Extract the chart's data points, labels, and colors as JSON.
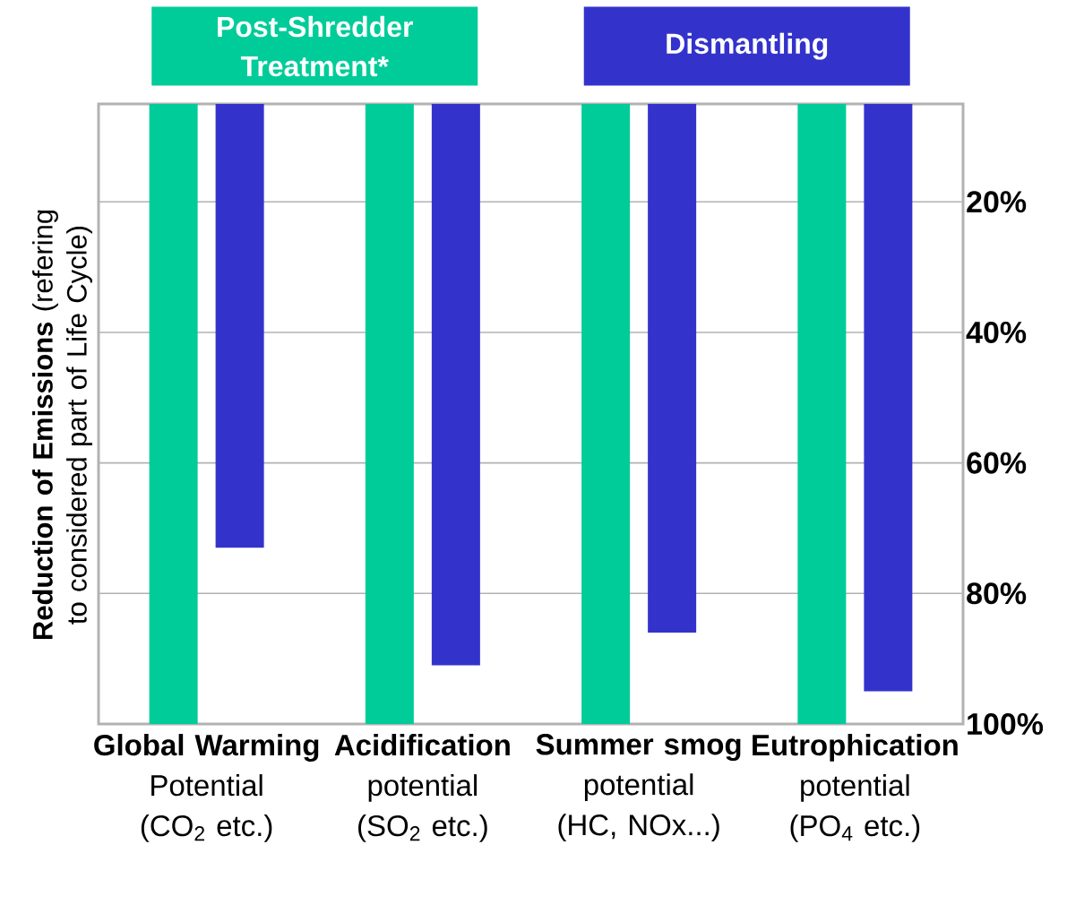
{
  "chart_data": {
    "type": "bar",
    "ylabel": "**Reduction of Emissions** (refering to considered part of Life Cycle)",
    "categories": [
      "**Global Warming** Potential (CO$_{2}$ etc.)",
      "**Acidification** potential (SO$_{2}$ etc.)",
      "**Summer smog** potential (HC, NOx...)",
      "**Eutrophication** potential (PO$_{4}$ etc.)"
    ],
    "series": [
      {
        "name": "Post-Shredder Treatment*",
        "color": "#00cc99",
        "values": [
          100,
          100,
          100,
          100
        ]
      },
      {
        "name": "Dismantling",
        "color": "#3333cc",
        "values": [
          73,
          91,
          86,
          95
        ]
      }
    ],
    "ylim": [
      100,
      5
    ],
    "yticks": [
      {
        "value": 20,
        "label": "20%"
      },
      {
        "value": 40,
        "label": "40%"
      },
      {
        "value": 60,
        "label": "60%"
      },
      {
        "value": 80,
        "label": "80%"
      },
      {
        "value": 100,
        "label": "100%"
      }
    ],
    "grid": "y",
    "legend": "top"
  }
}
